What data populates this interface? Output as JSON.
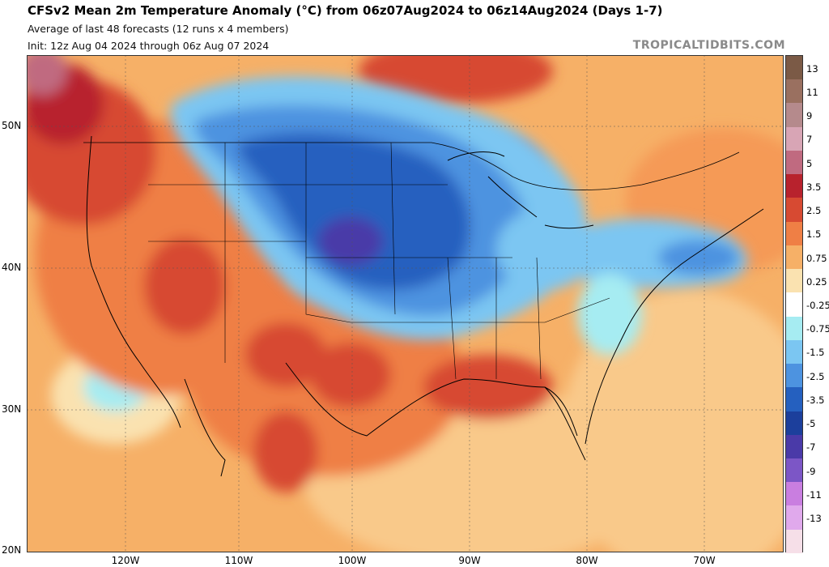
{
  "header": {
    "title": "CFSv2 Mean 2m Temperature Anomaly (°C) from 06z07Aug2024 to 06z14Aug2024 (Days 1-7)",
    "subtitle": "Average of last 48 forecasts (12 runs x 4 members)",
    "init": "Init: 12z Aug 04 2024 through 06z Aug 07 2024",
    "brand": "TROPICALTIDBITS.COM"
  },
  "map": {
    "lat_labels": [
      "50N",
      "40N",
      "30N",
      "20N"
    ],
    "lon_labels": [
      "120W",
      "110W",
      "100W",
      "90W",
      "80W",
      "70W"
    ]
  },
  "colorbar": {
    "labels": [
      "13",
      "11",
      "9",
      "7",
      "5",
      "3.5",
      "2.5",
      "1.5",
      "0.75",
      "0.25",
      "-0.25",
      "-0.75",
      "-1.5",
      "-2.5",
      "-3.5",
      "-5",
      "-7",
      "-9",
      "-11",
      "-13"
    ],
    "colors": [
      "#7b5a46",
      "#9a7060",
      "#b58a8c",
      "#d8a5b5",
      "#c06a80",
      "#b8222d",
      "#d74a32",
      "#ef7f45",
      "#f6b067",
      "#fae2b0",
      "#ffffff",
      "#a6ecf2",
      "#7bc6f2",
      "#4d93e0",
      "#2560bf",
      "#1c3f9c",
      "#4a3aa8",
      "#7c56c6",
      "#c97ee0",
      "#e0a9ec",
      "#f6dfe8"
    ],
    "colors_note": "21 bins top to bottom"
  }
}
